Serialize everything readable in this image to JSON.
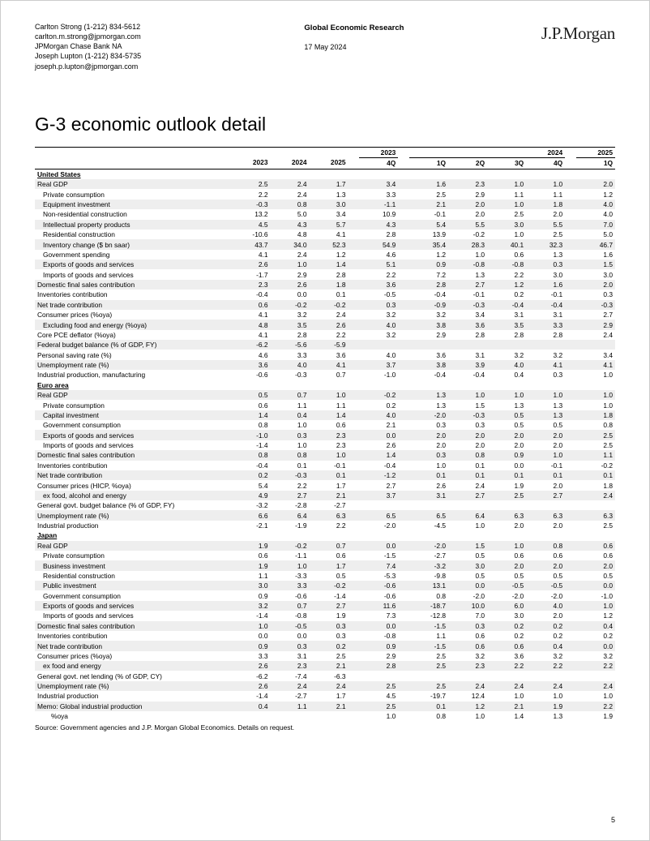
{
  "header": {
    "author1_line": "Carlton Strong  (1-212) 834-5612",
    "author1_email": "carlton.m.strong@jpmorgan.com",
    "firm": "JPMorgan Chase Bank NA",
    "author2_line": "Joseph Lupton  (1-212) 834-5735",
    "author2_email": "joseph.p.lupton@jpmorgan.com",
    "dept": "Global Economic Research",
    "date": "17 May 2024",
    "logo_a": "J.P.",
    "logo_b": "Morgan"
  },
  "title": "G-3 economic outlook detail",
  "year_cols": [
    "2023",
    "2024",
    "2025",
    "4Q",
    "1Q",
    "2Q",
    "3Q",
    "4Q",
    "1Q"
  ],
  "group_cols": [
    "",
    "",
    "",
    "2023",
    "",
    "2024",
    "",
    "",
    "2025"
  ],
  "sections": [
    {
      "name": "United States",
      "rows": [
        [
          "Real GDP",
          0,
          1,
          "2.5",
          "2.4",
          "1.7",
          "3.4",
          "1.6",
          "2.3",
          "1.0",
          "1.0",
          "2.0"
        ],
        [
          "Private consumption",
          1,
          0,
          "2.2",
          "2.4",
          "1.3",
          "3.3",
          "2.5",
          "2.9",
          "1.1",
          "1.1",
          "1.2"
        ],
        [
          "Equipment investment",
          1,
          1,
          "-0.3",
          "0.8",
          "3.0",
          "-1.1",
          "2.1",
          "2.0",
          "1.0",
          "1.8",
          "4.0"
        ],
        [
          "Non-residential construction",
          1,
          0,
          "13.2",
          "5.0",
          "3.4",
          "10.9",
          "-0.1",
          "2.0",
          "2.5",
          "2.0",
          "4.0"
        ],
        [
          "Intellectual property products",
          1,
          1,
          "4.5",
          "4.3",
          "5.7",
          "4.3",
          "5.4",
          "5.5",
          "3.0",
          "5.5",
          "7.0"
        ],
        [
          "Residential construction",
          1,
          0,
          "-10.6",
          "4.8",
          "4.1",
          "2.8",
          "13.9",
          "-0.2",
          "1.0",
          "2.5",
          "5.0"
        ],
        [
          "Inventory change ($ bn saar)",
          1,
          1,
          "43.7",
          "34.0",
          "52.3",
          "54.9",
          "35.4",
          "28.3",
          "40.1",
          "32.3",
          "46.7"
        ],
        [
          "Government spending",
          1,
          0,
          "4.1",
          "2.4",
          "1.2",
          "4.6",
          "1.2",
          "1.0",
          "0.6",
          "1.3",
          "1.6"
        ],
        [
          "Exports of goods and services",
          1,
          1,
          "2.6",
          "1.0",
          "1.4",
          "5.1",
          "0.9",
          "-0.8",
          "-0.8",
          "0.3",
          "1.5"
        ],
        [
          "Imports of goods and services",
          1,
          0,
          "-1.7",
          "2.9",
          "2.8",
          "2.2",
          "7.2",
          "1.3",
          "2.2",
          "3.0",
          "3.0"
        ],
        [
          "Domestic final sales contribution",
          0,
          1,
          "2.3",
          "2.6",
          "1.8",
          "3.6",
          "2.8",
          "2.7",
          "1.2",
          "1.6",
          "2.0"
        ],
        [
          "Inventories contribution",
          0,
          0,
          "-0.4",
          "0.0",
          "0.1",
          "-0.5",
          "-0.4",
          "-0.1",
          "0.2",
          "-0.1",
          "0.3"
        ],
        [
          "Net trade contribution",
          0,
          1,
          "0.6",
          "-0.2",
          "-0.2",
          "0.3",
          "-0.9",
          "-0.3",
          "-0.4",
          "-0.4",
          "-0.3"
        ],
        [
          "Consumer prices (%oya)",
          0,
          0,
          "4.1",
          "3.2",
          "2.4",
          "3.2",
          "3.2",
          "3.4",
          "3.1",
          "3.1",
          "2.7"
        ],
        [
          "Excluding food and energy (%oya)",
          1,
          1,
          "4.8",
          "3.5",
          "2.6",
          "4.0",
          "3.8",
          "3.6",
          "3.5",
          "3.3",
          "2.9"
        ],
        [
          "Core PCE deflator (%oya)",
          0,
          0,
          "4.1",
          "2.8",
          "2.2",
          "3.2",
          "2.9",
          "2.8",
          "2.8",
          "2.8",
          "2.4"
        ],
        [
          "Federal budget balance (% of GDP, FY)",
          0,
          1,
          "-6.2",
          "-5.6",
          "-5.9",
          "",
          "",
          "",
          "",
          "",
          ""
        ],
        [
          "Personal saving rate (%)",
          0,
          0,
          "4.6",
          "3.3",
          "3.6",
          "4.0",
          "3.6",
          "3.1",
          "3.2",
          "3.2",
          "3.4"
        ],
        [
          "Unemployment rate (%)",
          0,
          1,
          "3.6",
          "4.0",
          "4.1",
          "3.7",
          "3.8",
          "3.9",
          "4.0",
          "4.1",
          "4.1"
        ],
        [
          "Industrial production, manufacturing",
          0,
          0,
          "-0.6",
          "-0.3",
          "0.7",
          "-1.0",
          "-0.4",
          "-0.4",
          "0.4",
          "0.3",
          "1.0"
        ]
      ]
    },
    {
      "name": "Euro area",
      "rows": [
        [
          "Real GDP",
          0,
          1,
          "0.5",
          "0.7",
          "1.0",
          "-0.2",
          "1.3",
          "1.0",
          "1.0",
          "1.0",
          "1.0"
        ],
        [
          "Private consumption",
          1,
          0,
          "0.6",
          "1.1",
          "1.1",
          "0.2",
          "1.3",
          "1.5",
          "1.3",
          "1.3",
          "1.0"
        ],
        [
          "Capital investment",
          1,
          1,
          "1.4",
          "0.4",
          "1.4",
          "4.0",
          "-2.0",
          "-0.3",
          "0.5",
          "1.3",
          "1.8"
        ],
        [
          "Government consumption",
          1,
          0,
          "0.8",
          "1.0",
          "0.6",
          "2.1",
          "0.3",
          "0.3",
          "0.5",
          "0.5",
          "0.8"
        ],
        [
          "Exports of goods and services",
          1,
          1,
          "-1.0",
          "0.3",
          "2.3",
          "0.0",
          "2.0",
          "2.0",
          "2.0",
          "2.0",
          "2.5"
        ],
        [
          "Imports of goods and services",
          1,
          0,
          "-1.4",
          "1.0",
          "2.3",
          "2.6",
          "2.0",
          "2.0",
          "2.0",
          "2.0",
          "2.5"
        ],
        [
          "Domestic final sales contribution",
          0,
          1,
          "0.8",
          "0.8",
          "1.0",
          "1.4",
          "0.3",
          "0.8",
          "0.9",
          "1.0",
          "1.1"
        ],
        [
          "Inventories contribution",
          0,
          0,
          "-0.4",
          "0.1",
          "-0.1",
          "-0.4",
          "1.0",
          "0.1",
          "0.0",
          "-0.1",
          "-0.2"
        ],
        [
          "Net trade contribution",
          0,
          1,
          "0.2",
          "-0.3",
          "0.1",
          "-1.2",
          "0.1",
          "0.1",
          "0.1",
          "0.1",
          "0.1"
        ],
        [
          "Consumer prices (HICP, %oya)",
          0,
          0,
          "5.4",
          "2.2",
          "1.7",
          "2.7",
          "2.6",
          "2.4",
          "1.9",
          "2.0",
          "1.8"
        ],
        [
          "ex food, alcohol and energy",
          1,
          1,
          "4.9",
          "2.7",
          "2.1",
          "3.7",
          "3.1",
          "2.7",
          "2.5",
          "2.7",
          "2.4"
        ],
        [
          "General govt. budget balance (% of GDP, FY)",
          0,
          0,
          "-3.2",
          "-2.8",
          "-2.7",
          "",
          "",
          "",
          "",
          "",
          ""
        ],
        [
          "Unemployment rate (%)",
          0,
          1,
          "6.6",
          "6.4",
          "6.3",
          "6.5",
          "6.5",
          "6.4",
          "6.3",
          "6.3",
          "6.3"
        ],
        [
          "Industrial production",
          0,
          0,
          "-2.1",
          "-1.9",
          "2.2",
          "-2.0",
          "-4.5",
          "1.0",
          "2.0",
          "2.0",
          "2.5"
        ]
      ]
    },
    {
      "name": "Japan",
      "rows": [
        [
          "Real GDP",
          0,
          1,
          "1.9",
          "-0.2",
          "0.7",
          "0.0",
          "-2.0",
          "1.5",
          "1.0",
          "0.8",
          "0.6"
        ],
        [
          "Private consumption",
          1,
          0,
          "0.6",
          "-1.1",
          "0.6",
          "-1.5",
          "-2.7",
          "0.5",
          "0.6",
          "0.6",
          "0.6"
        ],
        [
          "Business investment",
          1,
          1,
          "1.9",
          "1.0",
          "1.7",
          "7.4",
          "-3.2",
          "3.0",
          "2.0",
          "2.0",
          "2.0"
        ],
        [
          "Residential construction",
          1,
          0,
          "1.1",
          "-3.3",
          "0.5",
          "-5.3",
          "-9.8",
          "0.5",
          "0.5",
          "0.5",
          "0.5"
        ],
        [
          "Public investment",
          1,
          1,
          "3.0",
          "3.3",
          "-0.2",
          "-0.6",
          "13.1",
          "0.0",
          "-0.5",
          "-0.5",
          "0.0"
        ],
        [
          "Government consumption",
          1,
          0,
          "0.9",
          "-0.6",
          "-1.4",
          "-0.6",
          "0.8",
          "-2.0",
          "-2.0",
          "-2.0",
          "-1.0"
        ],
        [
          "Exports of goods and services",
          1,
          1,
          "3.2",
          "0.7",
          "2.7",
          "11.6",
          "-18.7",
          "10.0",
          "6.0",
          "4.0",
          "1.0"
        ],
        [
          "Imports of goods and services",
          1,
          0,
          "-1.4",
          "-0.8",
          "1.9",
          "7.3",
          "-12.8",
          "7.0",
          "3.0",
          "2.0",
          "1.2"
        ],
        [
          "Domestic final sales contribution",
          0,
          1,
          "1.0",
          "-0.5",
          "0.3",
          "0.0",
          "-1.5",
          "0.3",
          "0.2",
          "0.2",
          "0.4"
        ],
        [
          "Inventories contribution",
          0,
          0,
          "0.0",
          "0.0",
          "0.3",
          "-0.8",
          "1.1",
          "0.6",
          "0.2",
          "0.2",
          "0.2"
        ],
        [
          "Net trade contribution",
          0,
          1,
          "0.9",
          "0.3",
          "0.2",
          "0.9",
          "-1.5",
          "0.6",
          "0.6",
          "0.4",
          "0.0"
        ],
        [
          "Consumer prices (%oya)",
          0,
          0,
          "3.3",
          "3.1",
          "2.5",
          "2.9",
          "2.5",
          "3.2",
          "3.6",
          "3.2",
          "3.2"
        ],
        [
          "ex food and energy",
          1,
          1,
          "2.6",
          "2.3",
          "2.1",
          "2.8",
          "2.5",
          "2.3",
          "2.2",
          "2.2",
          "2.2"
        ],
        [
          "General govt. net lending (% of GDP, CY)",
          0,
          0,
          "-6.2",
          "-7.4",
          "-6.3",
          "",
          "",
          "",
          "",
          "",
          ""
        ],
        [
          "Unemployment rate (%)",
          0,
          1,
          "2.6",
          "2.4",
          "2.4",
          "2.5",
          "2.5",
          "2.4",
          "2.4",
          "2.4",
          "2.4"
        ],
        [
          "Industrial production",
          0,
          0,
          "-1.4",
          "-2.7",
          "1.7",
          "4.5",
          "-19.7",
          "12.4",
          "1.0",
          "1.0",
          "1.0"
        ],
        [
          "Memo: Global industrial production",
          0,
          1,
          "0.4",
          "1.1",
          "2.1",
          "2.5",
          "0.1",
          "1.2",
          "2.1",
          "1.9",
          "2.2"
        ],
        [
          "%oya",
          2,
          0,
          "",
          "",
          "",
          "1.0",
          "0.8",
          "1.0",
          "1.4",
          "1.3",
          "1.9"
        ]
      ]
    }
  ],
  "source": "Source: Government agencies and J.P. Morgan Global Economics. Details on request.",
  "page_no": "5"
}
